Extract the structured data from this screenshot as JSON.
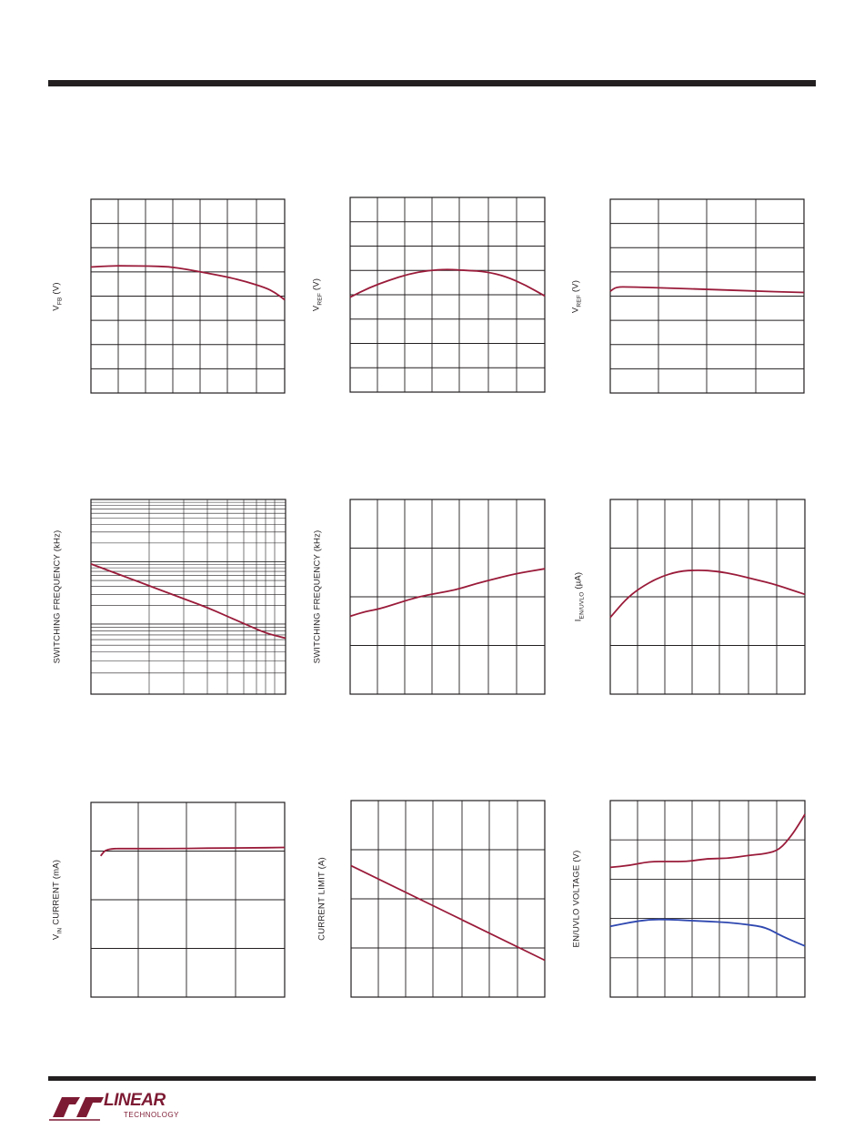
{
  "colors": {
    "curve": "#9a1b3a",
    "curve_blue": "#2f48b0",
    "grid": "#231f20",
    "rule": "#231f20",
    "logo": "#7d1a33"
  },
  "logo": {
    "name": "linear-technology-logo",
    "text": "LINEAR",
    "subtext": "TECHNOLOGY"
  },
  "charts": [
    {
      "id": "c1",
      "ylabel_main": "V",
      "ylabel_sub": "FB",
      "ylabel_tail": " (V)",
      "type": "line",
      "xlim": [
        0,
        100
      ],
      "ylim": [
        0,
        8
      ]
    },
    {
      "id": "c2",
      "ylabel_main": "V",
      "ylabel_sub": "REF",
      "ylabel_tail": " (V)",
      "type": "line",
      "xlim": [
        0,
        100
      ],
      "ylim": [
        0,
        8
      ]
    },
    {
      "id": "c3",
      "ylabel_main": "V",
      "ylabel_sub": "REF",
      "ylabel_tail": " (V)",
      "type": "line",
      "xlim": [
        0,
        100
      ],
      "ylim": [
        0,
        8
      ]
    },
    {
      "id": "c4",
      "ylabel_main": "SWITCHING FREQUENCY (kHz)",
      "ylabel_sub": "",
      "ylabel_tail": "",
      "type": "line",
      "scale": "log",
      "xlim": [
        0,
        100
      ],
      "ylim": [
        0,
        8
      ]
    },
    {
      "id": "c5",
      "ylabel_main": "SWITCHING FREQUENCY (kHz)",
      "ylabel_sub": "",
      "ylabel_tail": "",
      "type": "line",
      "xlim": [
        0,
        100
      ],
      "ylim": [
        0,
        8
      ]
    },
    {
      "id": "c6",
      "ylabel_main": "I",
      "ylabel_sub": "EN/UVLO",
      "ylabel_tail": " (µA)",
      "type": "line",
      "xlim": [
        0,
        100
      ],
      "ylim": [
        0,
        8
      ]
    },
    {
      "id": "c7",
      "ylabel_main": "V",
      "ylabel_sub": "IN",
      "ylabel_tail": " CURRENT (mA)",
      "type": "line",
      "xlim": [
        0,
        100
      ],
      "ylim": [
        0,
        8
      ]
    },
    {
      "id": "c8",
      "ylabel_main": "CURRENT LIMIT (A)",
      "ylabel_sub": "",
      "ylabel_tail": "",
      "type": "line",
      "xlim": [
        0,
        100
      ],
      "ylim": [
        0,
        8
      ]
    },
    {
      "id": "c9",
      "ylabel_main": "EN/UVLO VOLTAGE (V)",
      "ylabel_sub": "",
      "ylabel_tail": "",
      "type": "line",
      "xlim": [
        0,
        100
      ],
      "ylim": [
        0,
        10
      ]
    }
  ],
  "chart_data": [
    {
      "type": "line",
      "xlim": [
        0,
        100
      ],
      "ylim": [
        0,
        8
      ],
      "grid": true,
      "series": [
        {
          "x": [
            0,
            10,
            20,
            30,
            40,
            50,
            60,
            70,
            80,
            90,
            95,
            100
          ],
          "y": [
            5.2,
            5.25,
            5.25,
            5.24,
            5.22,
            5.1,
            4.95,
            4.8,
            4.6,
            4.35,
            4.15,
            3.85
          ]
        }
      ]
    },
    {
      "type": "line",
      "xlim": [
        0,
        100
      ],
      "ylim": [
        0,
        8
      ],
      "grid": true,
      "series": [
        {
          "x": [
            0,
            10,
            20,
            30,
            40,
            50,
            60,
            70,
            80,
            90,
            100
          ],
          "y": [
            3.9,
            4.3,
            4.6,
            4.85,
            5.0,
            5.05,
            5.0,
            4.95,
            4.75,
            4.4,
            3.95
          ]
        }
      ]
    },
    {
      "type": "line",
      "xlim": [
        0,
        100
      ],
      "ylim": [
        0,
        8
      ],
      "grid": true,
      "series": [
        {
          "x": [
            0,
            3,
            10,
            30,
            50,
            70,
            100
          ],
          "y": [
            4.2,
            4.38,
            4.38,
            4.33,
            4.28,
            4.22,
            4.15
          ]
        }
      ]
    },
    {
      "type": "line",
      "scale": "log",
      "xlim": [
        0,
        100
      ],
      "ylim": [
        0,
        8
      ],
      "grid": true,
      "series": [
        {
          "x": [
            0,
            10,
            20,
            30,
            40,
            50,
            60,
            70,
            80,
            90,
            100
          ],
          "y": [
            5.35,
            5.05,
            4.75,
            4.45,
            4.15,
            3.85,
            3.55,
            3.2,
            2.85,
            2.5,
            2.3
          ]
        }
      ]
    },
    {
      "type": "line",
      "xlim": [
        0,
        100
      ],
      "ylim": [
        0,
        8
      ],
      "grid": true,
      "series": [
        {
          "x": [
            0,
            8,
            15,
            25,
            35,
            45,
            55,
            65,
            75,
            85,
            100
          ],
          "y": [
            3.2,
            3.4,
            3.5,
            3.75,
            4.0,
            4.15,
            4.3,
            4.55,
            4.75,
            4.95,
            5.15
          ]
        }
      ]
    },
    {
      "type": "line",
      "xlim": [
        0,
        100
      ],
      "ylim": [
        0,
        8
      ],
      "grid": true,
      "series": [
        {
          "x": [
            0,
            8,
            15,
            25,
            35,
            45,
            55,
            65,
            75,
            85,
            100
          ],
          "y": [
            3.15,
            3.9,
            4.35,
            4.8,
            5.05,
            5.1,
            5.05,
            4.9,
            4.7,
            4.5,
            4.1
          ]
        }
      ]
    },
    {
      "type": "line",
      "xlim": [
        0,
        100
      ],
      "ylim": [
        0,
        8
      ],
      "grid": true,
      "series": [
        {
          "x": [
            5,
            8,
            20,
            40,
            60,
            80,
            100
          ],
          "y": [
            5.8,
            6.1,
            6.1,
            6.1,
            6.12,
            6.13,
            6.15
          ]
        }
      ]
    },
    {
      "type": "line",
      "xlim": [
        0,
        100
      ],
      "ylim": [
        0,
        8
      ],
      "grid": true,
      "series": [
        {
          "x": [
            0,
            100
          ],
          "y": [
            5.35,
            1.5
          ]
        }
      ]
    },
    {
      "type": "line",
      "xlim": [
        0,
        100
      ],
      "ylim": [
        0,
        10
      ],
      "grid": true,
      "series": [
        {
          "color": "red",
          "x": [
            0,
            10,
            20,
            30,
            40,
            50,
            60,
            70,
            80,
            87,
            93,
            97,
            100
          ],
          "y": [
            6.6,
            6.7,
            6.9,
            6.9,
            6.9,
            7.05,
            7.05,
            7.2,
            7.3,
            7.5,
            8.2,
            8.8,
            9.3
          ]
        },
        {
          "color": "blue",
          "x": [
            0,
            10,
            20,
            30,
            40,
            50,
            60,
            70,
            80,
            88,
            100
          ],
          "y": [
            3.6,
            3.8,
            3.95,
            3.95,
            3.9,
            3.85,
            3.8,
            3.7,
            3.55,
            3.1,
            2.6
          ]
        }
      ]
    }
  ]
}
